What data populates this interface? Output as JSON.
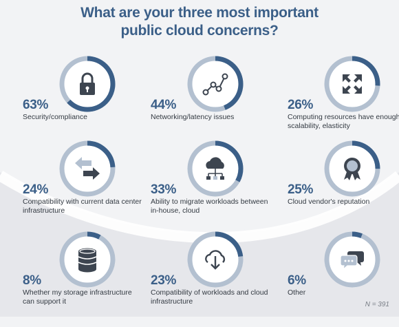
{
  "title": {
    "line1": "What are your three most important",
    "line2": "public cloud concerns?"
  },
  "footnote": "N = 391",
  "colors": {
    "title": "#3b5f88",
    "ring_filled": "#3b5f88",
    "ring_track": "#b3c0d0",
    "icon": "#3d4550"
  },
  "chart_data": {
    "type": "donut-grid",
    "unit": "%",
    "n": 391,
    "items": [
      {
        "label": "Security/compliance",
        "value": 63,
        "display": "63%",
        "icon": "lock-icon"
      },
      {
        "label": "Networking/latency issues",
        "value": 44,
        "display": "44%",
        "icon": "network-nodes-icon"
      },
      {
        "label": "Computing resources have enough scalability, elasticity",
        "value": 26,
        "display": "26%",
        "icon": "expand-arrows-icon"
      },
      {
        "label": "Compatibility with current data center infrastructure",
        "value": 24,
        "display": "24%",
        "icon": "exchange-arrows-icon"
      },
      {
        "label": "Ability to migrate workloads between in-house, cloud",
        "value": 33,
        "display": "33%",
        "icon": "cloud-network-icon"
      },
      {
        "label": "Cloud vendor's reputation",
        "value": 25,
        "display": "25%",
        "icon": "award-ribbon-icon"
      },
      {
        "label": "Whether my storage infrastructure can support it",
        "value": 8,
        "display": "8%",
        "icon": "database-icon"
      },
      {
        "label": "Compatibility of workloads and cloud infrastructure",
        "value": 23,
        "display": "23%",
        "icon": "cloud-download-icon"
      },
      {
        "label": "Other",
        "value": 6,
        "display": "6%",
        "icon": "chat-bubbles-icon"
      }
    ]
  }
}
